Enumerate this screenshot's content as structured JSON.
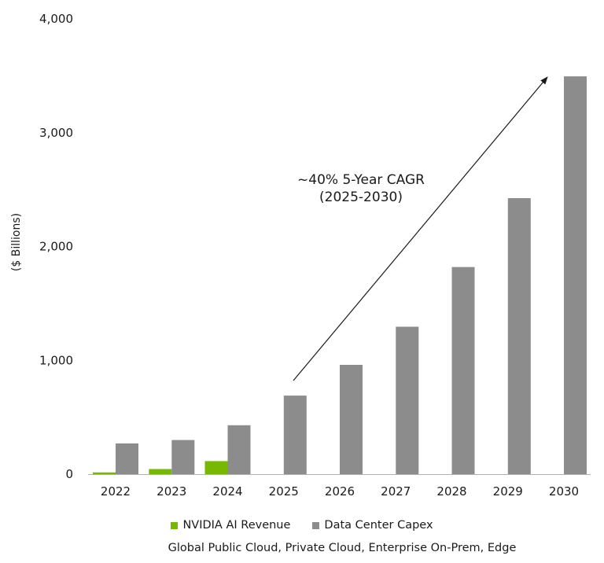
{
  "chart_data": {
    "type": "bar",
    "categories": [
      "2022",
      "2023",
      "2024",
      "2025",
      "2026",
      "2027",
      "2028",
      "2029",
      "2030"
    ],
    "series": [
      {
        "name": "NVIDIA AI Revenue",
        "color": "#76b900",
        "values": [
          15,
          45,
          115,
          null,
          null,
          null,
          null,
          null,
          null
        ]
      },
      {
        "name": "Data Center Capex",
        "color": "#8c8c8c",
        "values": [
          270,
          300,
          430,
          690,
          960,
          1295,
          1820,
          2425,
          3495
        ]
      }
    ],
    "ylabel": "($ Billions)",
    "ylim": [
      0,
      4000
    ],
    "yticks": [
      0,
      1000,
      2000,
      3000,
      4000
    ],
    "ytick_labels": [
      "0",
      "1,000",
      "2,000",
      "3,000",
      "4,000"
    ],
    "annotation": {
      "line1": "~40% 5-Year CAGR",
      "line2": "(2025-2030)"
    },
    "legend_position": "bottom-center",
    "subtitle": "Global Public Cloud, Private Cloud, Enterprise On-Prem, Edge"
  }
}
